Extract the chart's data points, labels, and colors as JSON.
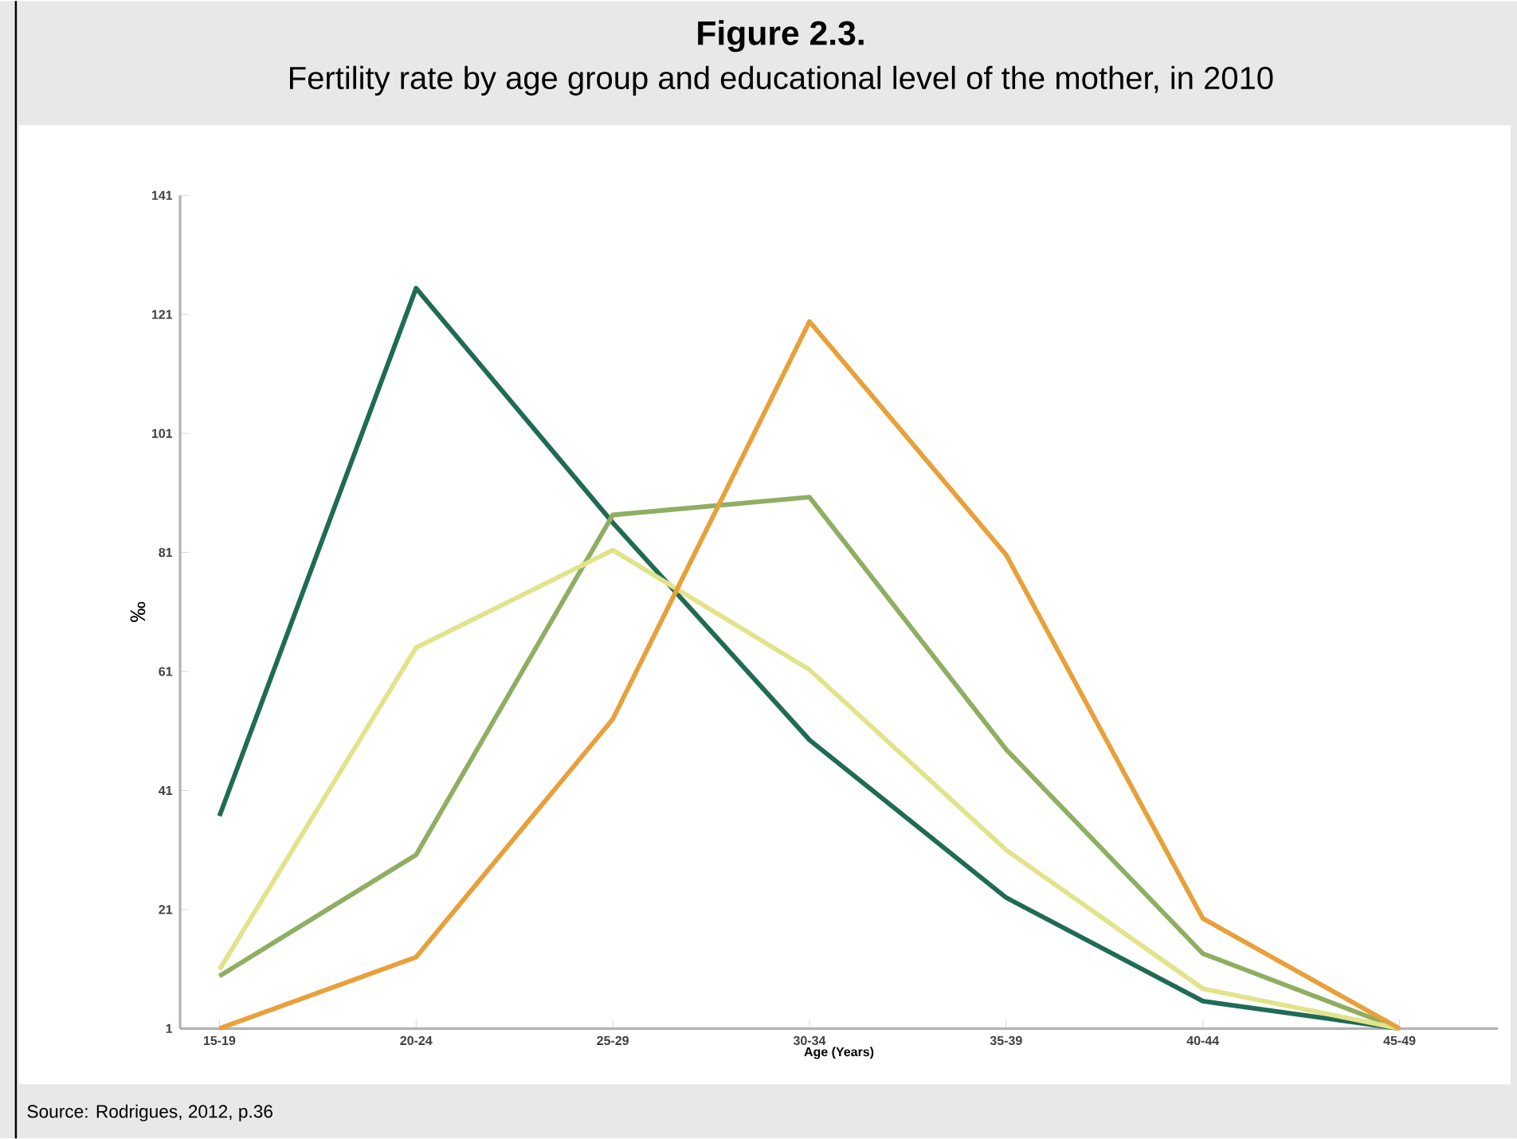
{
  "chart_data": {
    "type": "line",
    "title": "Figure 2.3.",
    "subtitle": "Fertility rate by age group and educational level of the mother, in 2010",
    "xlabel": "Age (Years)",
    "ylabel": "‰",
    "categories": [
      "15-19",
      "20-24",
      "25-29",
      "30-34",
      "35-39",
      "40-44",
      "45-49"
    ],
    "series": [
      {
        "color": "#1f6b55",
        "values": [
          36.7,
          125.4,
          86,
          49.5,
          23,
          5.6,
          1
        ]
      },
      {
        "color": "#8fae62",
        "values": [
          9.8,
          30.2,
          87.3,
          90.3,
          47.9,
          13.6,
          1
        ]
      },
      {
        "color": "#e2e38a",
        "values": [
          10.9,
          65,
          81.4,
          61.3,
          31,
          7.7,
          1
        ]
      },
      {
        "color": "#e8a03a",
        "values": [
          1,
          13,
          53,
          119.8,
          80.6,
          19.5,
          1
        ]
      }
    ],
    "ylim": [
      1,
      141
    ],
    "yticks": [
      1,
      21,
      41,
      61,
      81,
      101,
      121,
      141
    ],
    "marker": "none",
    "line_style": "solid",
    "annotations": [
      "Source: Rodrigues, 2012, p.36"
    ]
  }
}
